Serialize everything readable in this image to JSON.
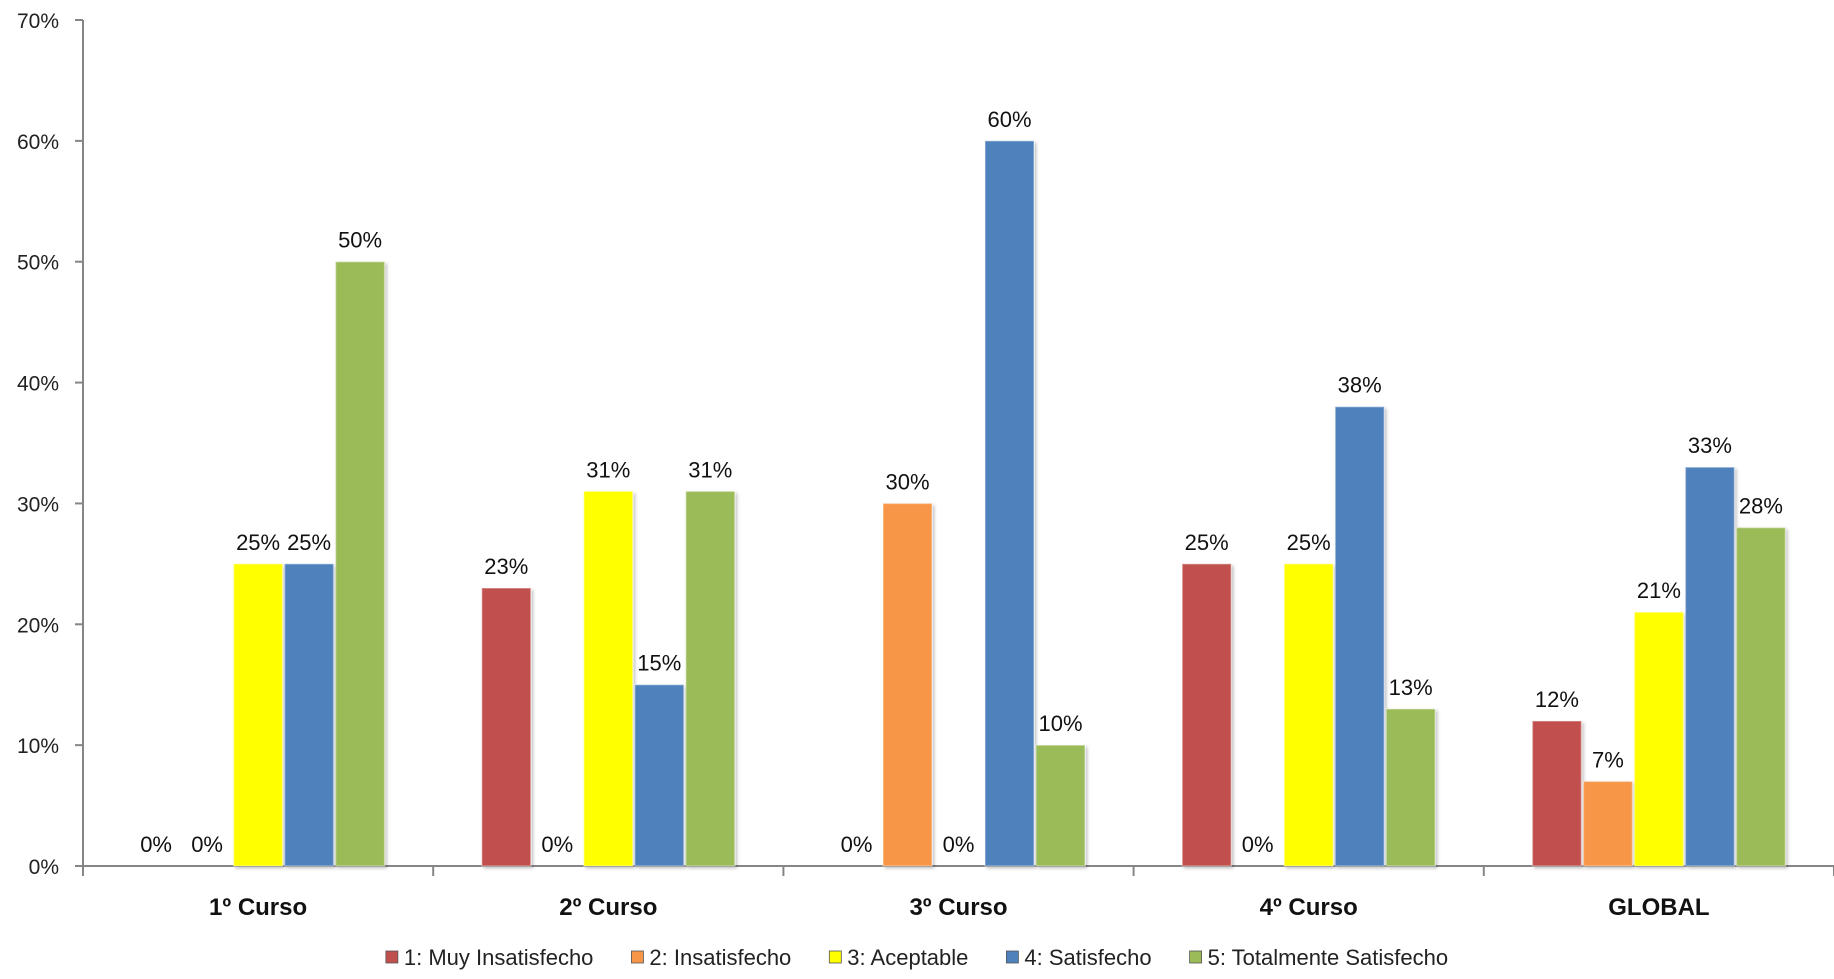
{
  "chart_data": {
    "type": "bar",
    "categories": [
      "1º Curso",
      "2º Curso",
      "3º Curso",
      "4º Curso",
      "GLOBAL"
    ],
    "series": [
      {
        "name": "1: Muy Insatisfecho",
        "color": "#c0504d",
        "values": [
          0,
          23,
          0,
          25,
          12
        ],
        "labels": [
          "0%",
          "23%",
          "0%",
          "25%",
          "12%"
        ]
      },
      {
        "name": "2: Insatisfecho",
        "color": "#f79646",
        "values": [
          0,
          0,
          30,
          0,
          7
        ],
        "labels": [
          "0%",
          "0%",
          "30%",
          "0%",
          "7%"
        ]
      },
      {
        "name": "3: Aceptable",
        "color": "#ffff00",
        "values": [
          25,
          31,
          0,
          25,
          21
        ],
        "labels": [
          "25%",
          "31%",
          "0%",
          "25%",
          "21%"
        ]
      },
      {
        "name": "4: Satisfecho",
        "color": "#4f81bd",
        "values": [
          25,
          15,
          60,
          38,
          33
        ],
        "labels": [
          "25%",
          "15%",
          "60%",
          "38%",
          "33%"
        ]
      },
      {
        "name": "5: Totalmente Satisfecho",
        "color": "#9bbb59",
        "values": [
          50,
          31,
          10,
          13,
          28
        ],
        "labels": [
          "50%",
          "31%",
          "10%",
          "13%",
          "28%"
        ]
      }
    ],
    "ylim": [
      0,
      70
    ],
    "yticks": [
      "0%",
      "10%",
      "20%",
      "30%",
      "40%",
      "50%",
      "60%",
      "70%"
    ],
    "grid": false,
    "legend_position": "bottom"
  }
}
